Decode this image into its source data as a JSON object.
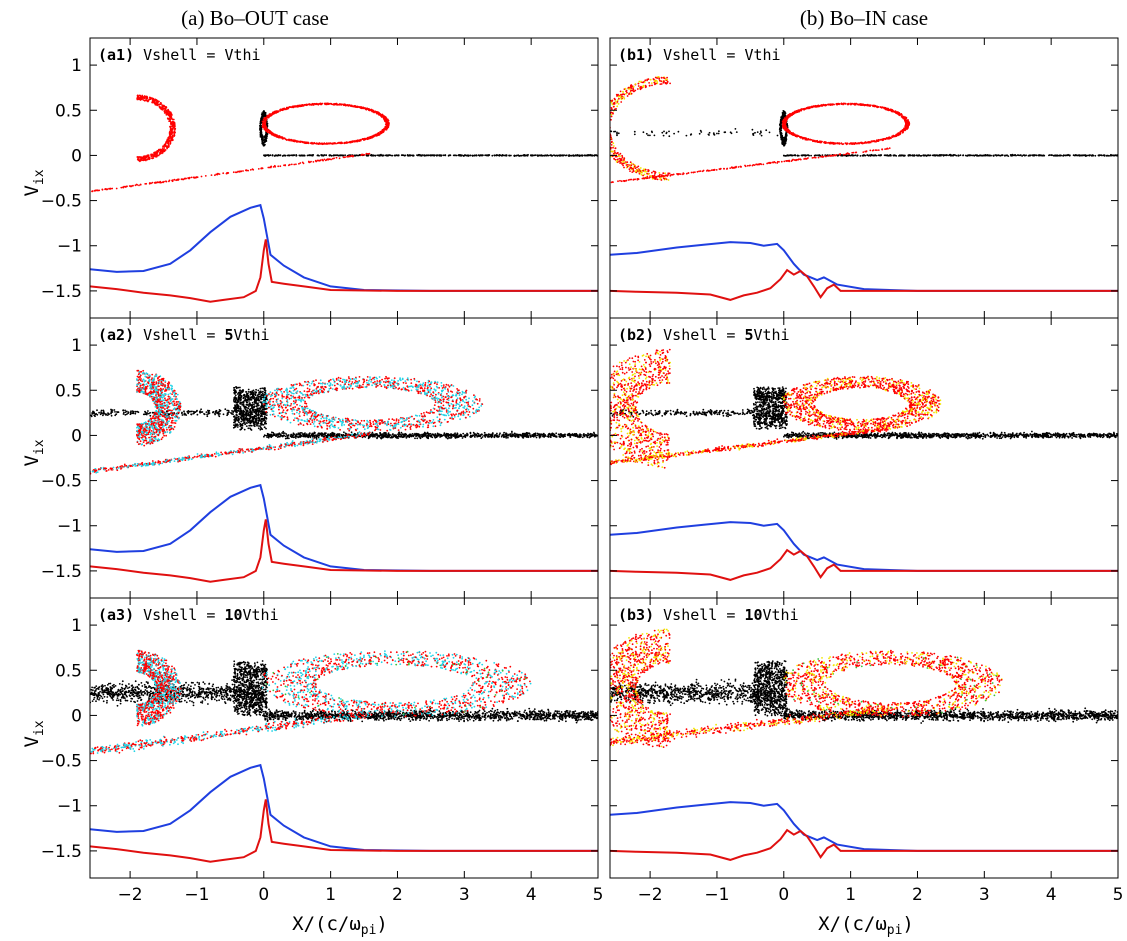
{
  "figure": {
    "columns": [
      {
        "key": "a",
        "title": "(a) Bo–OUT case"
      },
      {
        "key": "b",
        "title": "(b) Bo–IN case"
      }
    ],
    "ylabel_main": "V",
    "ylabel_sub": "ix",
    "xlabel_main": "X/(c/ω",
    "xlabel_sub": "pi",
    "xlabel_close": ")",
    "colors": {
      "scatter_black": "#000000",
      "scatter_red": "#ff0000",
      "scatter_cyan": "#22d3e6",
      "scatter_yellow": "#f2e600",
      "scatter_green": "#39c23a",
      "profile_blue": "#1f3fe0",
      "profile_red": "#e01010"
    }
  },
  "chart_data": [
    {
      "id": "a1",
      "type": "scatter",
      "tag": "(a1)",
      "cond_prefix": "Vshell = ",
      "cond_bold": "",
      "cond_suffix": "Vthi",
      "case": "Bo-OUT",
      "vshell_factor": 1,
      "xlim": [
        -2.6,
        5
      ],
      "ylim": [
        -1.8,
        1.3
      ],
      "xticks": [
        -2,
        -1,
        0,
        1,
        2,
        3,
        4,
        5
      ],
      "yticks": [
        1,
        0.5,
        0,
        -0.5,
        -1,
        -1.5
      ]
    },
    {
      "id": "b1",
      "type": "scatter",
      "tag": "(b1)",
      "cond_prefix": "Vshell = ",
      "cond_bold": "",
      "cond_suffix": "Vthi",
      "case": "Bo-IN",
      "vshell_factor": 1,
      "xlim": [
        -2.6,
        5
      ],
      "ylim": [
        -1.8,
        1.3
      ],
      "xticks": [
        -2,
        -1,
        0,
        1,
        2,
        3,
        4,
        5
      ],
      "yticks": [
        1,
        0.5,
        0,
        -0.5,
        -1,
        -1.5
      ]
    },
    {
      "id": "a2",
      "type": "scatter",
      "tag": "(a2)",
      "cond_prefix": "Vshell = ",
      "cond_bold": "5",
      "cond_suffix": "Vthi",
      "case": "Bo-OUT",
      "vshell_factor": 5,
      "xlim": [
        -2.6,
        5
      ],
      "ylim": [
        -1.8,
        1.3
      ],
      "xticks": [
        -2,
        -1,
        0,
        1,
        2,
        3,
        4,
        5
      ],
      "yticks": [
        1,
        0.5,
        0,
        -0.5,
        -1,
        -1.5
      ]
    },
    {
      "id": "b2",
      "type": "scatter",
      "tag": "(b2)",
      "cond_prefix": "Vshell = ",
      "cond_bold": "5",
      "cond_suffix": "Vthi",
      "case": "Bo-IN",
      "vshell_factor": 5,
      "xlim": [
        -2.6,
        5
      ],
      "ylim": [
        -1.8,
        1.3
      ],
      "xticks": [
        -2,
        -1,
        0,
        1,
        2,
        3,
        4,
        5
      ],
      "yticks": [
        1,
        0.5,
        0,
        -0.5,
        -1,
        -1.5
      ]
    },
    {
      "id": "a3",
      "type": "scatter",
      "tag": "(a3)",
      "cond_prefix": "Vshell = ",
      "cond_bold": "10",
      "cond_suffix": "Vthi",
      "case": "Bo-OUT",
      "vshell_factor": 10,
      "xlim": [
        -2.6,
        5
      ],
      "ylim": [
        -1.8,
        1.3
      ],
      "xticks": [
        -2,
        -1,
        0,
        1,
        2,
        3,
        4,
        5
      ],
      "yticks": [
        1,
        0.5,
        0,
        -0.5,
        -1,
        -1.5
      ]
    },
    {
      "id": "b3",
      "type": "scatter",
      "tag": "(b3)",
      "cond_prefix": "Vshell = ",
      "cond_bold": "10",
      "cond_suffix": "Vthi",
      "case": "Bo-IN",
      "vshell_factor": 10,
      "xlim": [
        -2.6,
        5
      ],
      "ylim": [
        -1.8,
        1.3
      ],
      "xticks": [
        -2,
        -1,
        0,
        1,
        2,
        3,
        4,
        5
      ],
      "yticks": [
        1,
        0.5,
        0,
        -0.5,
        -1,
        -1.5
      ]
    }
  ],
  "profiles": {
    "a_blue": [
      [
        -2.6,
        -1.26
      ],
      [
        -2.2,
        -1.29
      ],
      [
        -1.8,
        -1.28
      ],
      [
        -1.4,
        -1.2
      ],
      [
        -1.1,
        -1.05
      ],
      [
        -0.8,
        -0.85
      ],
      [
        -0.5,
        -0.68
      ],
      [
        -0.2,
        -0.58
      ],
      [
        -0.05,
        -0.55
      ],
      [
        0.0,
        -0.7
      ],
      [
        0.1,
        -1.1
      ],
      [
        0.3,
        -1.22
      ],
      [
        0.6,
        -1.35
      ],
      [
        1.0,
        -1.45
      ],
      [
        1.5,
        -1.49
      ],
      [
        2.5,
        -1.5
      ],
      [
        5,
        -1.5
      ]
    ],
    "a_red": [
      [
        -2.6,
        -1.45
      ],
      [
        -2.2,
        -1.48
      ],
      [
        -1.8,
        -1.52
      ],
      [
        -1.4,
        -1.55
      ],
      [
        -1.1,
        -1.58
      ],
      [
        -0.8,
        -1.62
      ],
      [
        -0.6,
        -1.6
      ],
      [
        -0.3,
        -1.57
      ],
      [
        -0.12,
        -1.5
      ],
      [
        -0.05,
        -1.35
      ],
      [
        0.0,
        -1.05
      ],
      [
        0.03,
        -0.93
      ],
      [
        0.07,
        -1.2
      ],
      [
        0.12,
        -1.4
      ],
      [
        0.3,
        -1.42
      ],
      [
        0.6,
        -1.45
      ],
      [
        1.0,
        -1.49
      ],
      [
        2,
        -1.5
      ],
      [
        5,
        -1.5
      ]
    ],
    "b_blue": [
      [
        -2.6,
        -1.1
      ],
      [
        -2.2,
        -1.08
      ],
      [
        -1.6,
        -1.02
      ],
      [
        -1.2,
        -0.99
      ],
      [
        -0.8,
        -0.96
      ],
      [
        -0.5,
        -0.97
      ],
      [
        -0.3,
        -1.0
      ],
      [
        -0.1,
        -0.98
      ],
      [
        0.0,
        -1.05
      ],
      [
        0.15,
        -1.2
      ],
      [
        0.3,
        -1.32
      ],
      [
        0.5,
        -1.38
      ],
      [
        0.6,
        -1.35
      ],
      [
        0.8,
        -1.43
      ],
      [
        1.2,
        -1.48
      ],
      [
        2,
        -1.5
      ],
      [
        5,
        -1.5
      ]
    ],
    "b_red": [
      [
        -2.6,
        -1.5
      ],
      [
        -2.2,
        -1.51
      ],
      [
        -1.6,
        -1.52
      ],
      [
        -1.1,
        -1.54
      ],
      [
        -0.8,
        -1.6
      ],
      [
        -0.6,
        -1.55
      ],
      [
        -0.4,
        -1.52
      ],
      [
        -0.2,
        -1.47
      ],
      [
        -0.05,
        -1.37
      ],
      [
        0.05,
        -1.27
      ],
      [
        0.15,
        -1.32
      ],
      [
        0.25,
        -1.28
      ],
      [
        0.35,
        -1.34
      ],
      [
        0.45,
        -1.45
      ],
      [
        0.55,
        -1.57
      ],
      [
        0.65,
        -1.47
      ],
      [
        0.75,
        -1.43
      ],
      [
        0.85,
        -1.5
      ],
      [
        1.0,
        -1.5
      ],
      [
        2,
        -1.5
      ],
      [
        5,
        -1.5
      ]
    ]
  }
}
